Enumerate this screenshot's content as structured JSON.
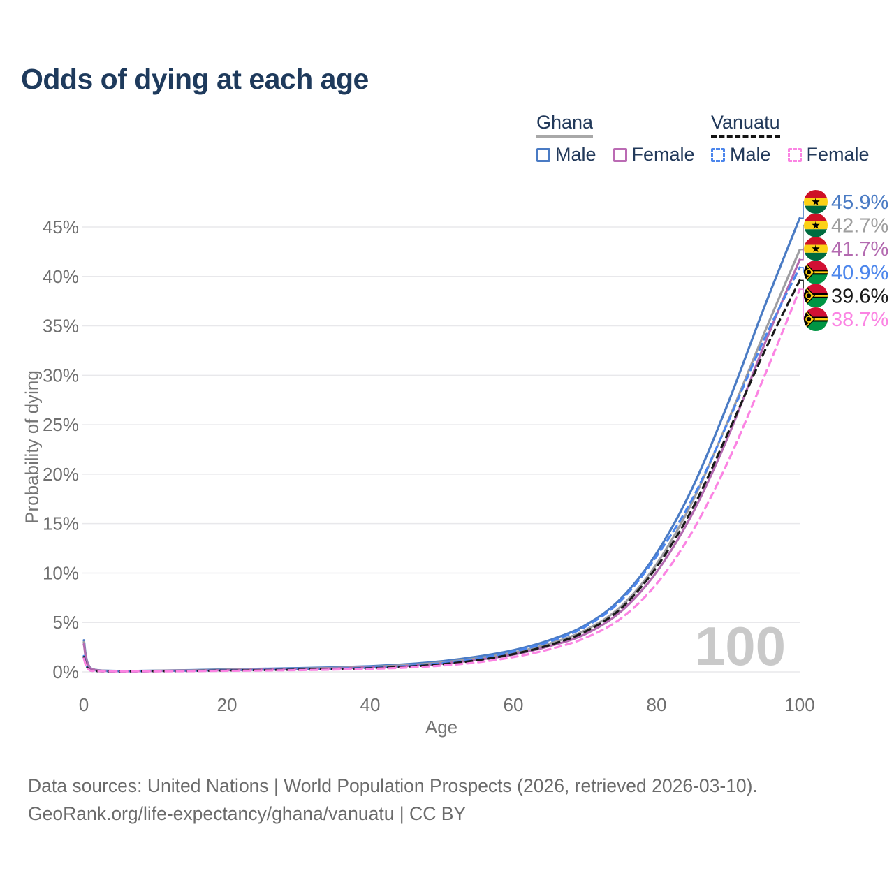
{
  "header": {
    "title": "Odds of dying at each age"
  },
  "legend": {
    "groups": [
      {
        "label": "Ghana",
        "underline_style": "solid",
        "underline_color": "#a8a8a8",
        "items": [
          {
            "label": "Male",
            "color": "#4a7bc4",
            "dashed": false
          },
          {
            "label": "Female",
            "color": "#bb6bb4",
            "dashed": false
          }
        ]
      },
      {
        "label": "Vanuatu",
        "underline_style": "dashed",
        "underline_color": "#141414",
        "items": [
          {
            "label": "Male",
            "color": "#4c86ec",
            "dashed": true
          },
          {
            "label": "Female",
            "color": "#fb84e3",
            "dashed": true
          }
        ]
      }
    ]
  },
  "chart_data": {
    "type": "line",
    "title": "Odds of dying at each age",
    "xlabel": "Age",
    "ylabel": "Probability of dying",
    "xlim": [
      0,
      100
    ],
    "ylim": [
      0,
      47.5
    ],
    "grid": "horizontal-only",
    "legend_position": "top-right",
    "watermark": "100",
    "x_tick_values": [
      0,
      20,
      40,
      60,
      80,
      100
    ],
    "x_tick_labels": [
      "0",
      "20",
      "40",
      "60",
      "80",
      "100"
    ],
    "y_tick_values": [
      0,
      5,
      10,
      15,
      20,
      25,
      30,
      35,
      40,
      45
    ],
    "y_tick_labels": [
      "0%",
      "5%",
      "10%",
      "15%",
      "20%",
      "25%",
      "30%",
      "35%",
      "40%",
      "45%"
    ],
    "x": [
      0,
      1,
      5,
      10,
      15,
      20,
      25,
      30,
      35,
      40,
      45,
      50,
      55,
      60,
      65,
      70,
      75,
      80,
      85,
      90,
      95,
      100
    ],
    "series": [
      {
        "name": "Ghana Male",
        "country": "Ghana",
        "sex": "Male",
        "flag": "ghana",
        "color": "#4a7bc4",
        "dashed": false,
        "end_value": 45.9,
        "end_label": "45.9%",
        "values": [
          3.2,
          0.35,
          0.1,
          0.13,
          0.18,
          0.26,
          0.32,
          0.38,
          0.46,
          0.58,
          0.78,
          1.08,
          1.55,
          2.2,
          3.2,
          4.7,
          7.4,
          12.0,
          18.6,
          27.2,
          36.8,
          45.9
        ]
      },
      {
        "name": "Ghana Both sexes",
        "country": "Ghana",
        "sex": "Both",
        "flag": "ghana",
        "color": "#9e9ea2",
        "dashed": false,
        "end_value": 42.7,
        "end_label": "42.7%",
        "values": [
          3.0,
          0.32,
          0.09,
          0.12,
          0.16,
          0.22,
          0.27,
          0.32,
          0.4,
          0.51,
          0.68,
          0.95,
          1.38,
          1.95,
          2.85,
          4.2,
          6.6,
          10.9,
          17.2,
          25.4,
          34.2,
          42.7
        ]
      },
      {
        "name": "Ghana Female",
        "country": "Ghana",
        "sex": "Female",
        "flag": "ghana",
        "color": "#b36ab0",
        "dashed": false,
        "end_value": 41.7,
        "end_label": "41.7%",
        "values": [
          2.8,
          0.3,
          0.08,
          0.1,
          0.13,
          0.18,
          0.23,
          0.28,
          0.35,
          0.45,
          0.6,
          0.84,
          1.22,
          1.75,
          2.6,
          3.8,
          6.1,
          10.1,
          16.0,
          23.8,
          33.0,
          41.7
        ]
      },
      {
        "name": "Vanuatu Male",
        "country": "Vanuatu",
        "sex": "Male",
        "flag": "vanuatu",
        "color": "#4c86ec",
        "dashed": true,
        "end_value": 40.9,
        "end_label": "40.9%",
        "values": [
          1.6,
          0.13,
          0.06,
          0.08,
          0.11,
          0.17,
          0.21,
          0.26,
          0.33,
          0.43,
          0.6,
          0.88,
          1.35,
          2.05,
          3.05,
          4.55,
          7.2,
          11.7,
          17.5,
          25.3,
          33.6,
          40.9
        ]
      },
      {
        "name": "Vanuatu Both sexes",
        "country": "Vanuatu",
        "sex": "Both",
        "flag": "vanuatu",
        "color": "#1a1a1a",
        "dashed": true,
        "end_value": 39.6,
        "end_label": "39.6%",
        "values": [
          1.5,
          0.12,
          0.05,
          0.07,
          0.1,
          0.14,
          0.18,
          0.22,
          0.28,
          0.37,
          0.52,
          0.77,
          1.18,
          1.8,
          2.7,
          4.05,
          6.4,
          10.6,
          16.5,
          24.2,
          32.3,
          39.6
        ]
      },
      {
        "name": "Vanuatu Female",
        "country": "Vanuatu",
        "sex": "Female",
        "flag": "vanuatu",
        "color": "#fb84e3",
        "dashed": true,
        "end_value": 38.7,
        "end_label": "38.7%",
        "values": [
          1.35,
          0.11,
          0.05,
          0.06,
          0.08,
          0.11,
          0.14,
          0.18,
          0.23,
          0.31,
          0.43,
          0.64,
          0.97,
          1.5,
          2.28,
          3.42,
          5.4,
          8.9,
          14.2,
          21.3,
          29.8,
          38.7
        ]
      }
    ],
    "flag_colors": {
      "ghana": {
        "red": "#ce1126",
        "gold": "#fcd116",
        "green": "#006b3f",
        "star": "#000000"
      },
      "vanuatu": {
        "red": "#d21034",
        "green": "#009543",
        "black": "#000000",
        "yellow": "#fdce12"
      }
    }
  },
  "footer": {
    "line1": "Data sources: United Nations | World Population Prospects (2026, retrieved 2026-03-10).",
    "line2": "GeoRank.org/life-expectancy/ghana/vanuatu | CC BY"
  }
}
